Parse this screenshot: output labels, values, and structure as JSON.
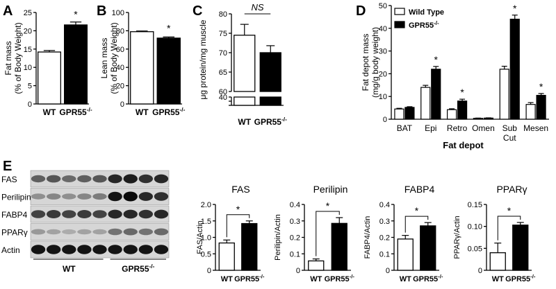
{
  "panel_letters": [
    "A",
    "B",
    "C",
    "D",
    "E"
  ],
  "chart_data": [
    {
      "id": "A",
      "type": "bar",
      "categories": [
        "WT",
        "GPR55"
      ],
      "category_superscripts": [
        "",
        "-/-"
      ],
      "values": [
        14.2,
        21.6
      ],
      "errors": [
        0.4,
        0.8
      ],
      "colors": [
        "#ffffff",
        "#000000"
      ],
      "ylabel_lines": [
        "Fat mass",
        "(% of Body Weight)"
      ],
      "ylim": [
        0,
        25
      ],
      "yticks": [
        "0",
        "5",
        "10",
        "15",
        "20",
        "25"
      ],
      "annotations": [
        {
          "text": "*",
          "bar": 1
        }
      ]
    },
    {
      "id": "B",
      "type": "bar",
      "categories": [
        "WT",
        "GPR55"
      ],
      "category_superscripts": [
        "",
        "-/-"
      ],
      "values": [
        79,
        72
      ],
      "errors": [
        0.8,
        1.2
      ],
      "colors": [
        "#ffffff",
        "#000000"
      ],
      "ylabel_lines": [
        "Lean mass",
        "(% of Body Weight)"
      ],
      "ylim": [
        0,
        100
      ],
      "yticks": [
        "0",
        "20",
        "40",
        "60",
        "80",
        "100"
      ],
      "annotations": [
        {
          "text": "*",
          "bar": 1
        }
      ]
    },
    {
      "id": "C",
      "type": "bar",
      "categories": [
        "WT",
        "GPR55"
      ],
      "category_superscripts": [
        "",
        "-/-"
      ],
      "values": [
        74.5,
        70
      ],
      "errors": [
        2.8,
        1.8
      ],
      "colors": [
        "#ffffff",
        "#000000"
      ],
      "ylabel_lines": [
        "μg protein/mg muscle"
      ],
      "ylim": [
        0,
        80
      ],
      "axis_break": [
        40,
        60
      ],
      "yticks": [
        "0",
        "20",
        "40",
        "60",
        "65",
        "70",
        "75",
        "80"
      ],
      "annotations": [
        {
          "text": "NS",
          "type": "bracket"
        }
      ]
    },
    {
      "id": "D",
      "type": "bar",
      "categories": [
        "BAT",
        "Epi",
        "Retro",
        "Omen",
        "Sub\nCut",
        "Mesen"
      ],
      "series": [
        {
          "name": "Wild Type",
          "values": [
            4.5,
            14,
            4.2,
            0.4,
            22,
            6.5
          ],
          "errors": [
            0.3,
            0.9,
            0.4,
            0.1,
            1.3,
            0.8
          ],
          "color": "#ffffff"
        },
        {
          "name": "GPR55",
          "name_superscript": "-/-",
          "values": [
            5.2,
            22,
            8,
            0.5,
            44,
            10.5
          ],
          "errors": [
            0.3,
            1.2,
            0.8,
            0.1,
            1.8,
            0.8
          ],
          "color": "#000000"
        }
      ],
      "significant": [
        false,
        true,
        true,
        false,
        true,
        true
      ],
      "star_text": "*",
      "xlabel": "Fat depot",
      "ylabel_lines": [
        "Fat depot mass",
        "(mg/g body weight)"
      ],
      "ylim": [
        0,
        50
      ],
      "yticks": [
        "0",
        "10",
        "20",
        "30",
        "40",
        "50"
      ],
      "legend_position": "top-left"
    },
    {
      "id": "E-FAS",
      "type": "bar",
      "title": "FAS",
      "categories": [
        "WT",
        "GPR55"
      ],
      "category_superscripts": [
        "",
        "-/-"
      ],
      "values": [
        0.83,
        1.42
      ],
      "errors": [
        0.09,
        0.08
      ],
      "colors": [
        "#ffffff",
        "#000000"
      ],
      "ylabel_lines": [
        "FAS/Actin"
      ],
      "ylim": [
        0,
        2.0
      ],
      "yticks": [
        "0",
        "0.5",
        "1.0",
        "1.5",
        "2.0"
      ],
      "annotations": [
        {
          "text": "*",
          "type": "bracket"
        }
      ]
    },
    {
      "id": "E-Perilipin",
      "type": "bar",
      "title": "Perilipin",
      "categories": [
        "WT",
        "GPR55"
      ],
      "category_superscripts": [
        "",
        "-/-"
      ],
      "values": [
        0.057,
        0.285
      ],
      "errors": [
        0.012,
        0.035
      ],
      "colors": [
        "#ffffff",
        "#000000"
      ],
      "ylabel_lines": [
        "Perilipin/Actin"
      ],
      "ylim": [
        0,
        0.4
      ],
      "yticks": [
        "0",
        "0.1",
        "0.2",
        "0.3",
        "0.4"
      ],
      "annotations": [
        {
          "text": "*",
          "type": "bracket"
        }
      ]
    },
    {
      "id": "E-FABP4",
      "type": "bar",
      "title": "FABP4",
      "categories": [
        "WT",
        "GPR55"
      ],
      "category_superscripts": [
        "",
        "-/-"
      ],
      "values": [
        0.19,
        0.27
      ],
      "errors": [
        0.022,
        0.02
      ],
      "colors": [
        "#ffffff",
        "#000000"
      ],
      "ylabel_lines": [
        "FABP4/Actin"
      ],
      "ylim": [
        0,
        0.4
      ],
      "yticks": [
        "0",
        "0.1",
        "0.2",
        "0.3",
        "0.4"
      ],
      "annotations": [
        {
          "text": "*",
          "type": "bracket"
        }
      ]
    },
    {
      "id": "E-PPARg",
      "type": "bar",
      "title": "PPARγ",
      "categories": [
        "WT",
        "GPR55"
      ],
      "category_superscripts": [
        "",
        "-/-"
      ],
      "values": [
        0.04,
        0.103
      ],
      "errors": [
        0.022,
        0.006
      ],
      "colors": [
        "#ffffff",
        "#000000"
      ],
      "ylabel_lines": [
        "PPARγ/Actin"
      ],
      "ylim": [
        0,
        0.15
      ],
      "yticks": [
        "0",
        "0.05",
        "0.10",
        "0.15"
      ],
      "annotations": [
        {
          "text": "*",
          "type": "bracket"
        }
      ]
    }
  ],
  "western_blot": {
    "row_labels": [
      "FAS",
      "Perilipin",
      "FABP4",
      "PPARγ",
      "Actin"
    ],
    "group_labels": [
      "WT",
      "GPR55"
    ],
    "group_superscript": "-/-",
    "lanes": 9,
    "intensity": [
      [
        0.55,
        0.6,
        0.5,
        0.55,
        0.6,
        0.85,
        0.9,
        0.8,
        0.85
      ],
      [
        0.3,
        0.35,
        0.3,
        0.35,
        0.4,
        0.95,
        1.0,
        0.85,
        0.8
      ],
      [
        0.7,
        0.75,
        0.7,
        0.75,
        0.7,
        0.85,
        0.85,
        0.8,
        0.85
      ],
      [
        0.25,
        0.2,
        0.15,
        0.2,
        0.2,
        0.45,
        0.5,
        0.45,
        0.5
      ],
      [
        0.95,
        0.95,
        0.95,
        0.95,
        0.95,
        0.95,
        0.95,
        0.95,
        0.95
      ]
    ]
  }
}
